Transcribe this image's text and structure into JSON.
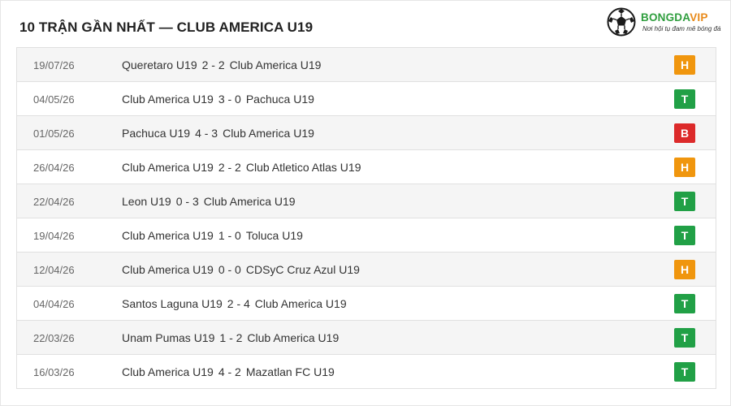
{
  "header": {
    "title": "10 TRẬN GẦN NHẤT — CLUB AMERICA U19"
  },
  "logo": {
    "brand_main": "BONGDA",
    "brand_accent": "VIP",
    "tagline": "Nơi hội tụ đam mê bóng đá",
    "icon": "soccer-ball-icon"
  },
  "colors": {
    "H": "#f0960e",
    "T": "#21a046",
    "B": "#dc2a2a"
  },
  "matches": [
    {
      "date": "19/07/26",
      "home": "Queretaro U19",
      "score": "2 - 2",
      "away": "Club America U19",
      "result": "H"
    },
    {
      "date": "04/05/26",
      "home": "Club America U19",
      "score": "3 - 0",
      "away": "Pachuca U19",
      "result": "T"
    },
    {
      "date": "01/05/26",
      "home": "Pachuca U19",
      "score": "4 - 3",
      "away": "Club America U19",
      "result": "B"
    },
    {
      "date": "26/04/26",
      "home": "Club America U19",
      "score": "2 - 2",
      "away": "Club Atletico Atlas U19",
      "result": "H"
    },
    {
      "date": "22/04/26",
      "home": "Leon U19",
      "score": "0 - 3",
      "away": "Club America U19",
      "result": "T"
    },
    {
      "date": "19/04/26",
      "home": "Club America U19",
      "score": "1 - 0",
      "away": "Toluca U19",
      "result": "T"
    },
    {
      "date": "12/04/26",
      "home": "Club America U19",
      "score": "0 - 0",
      "away": "CDSyC Cruz Azul U19",
      "result": "H"
    },
    {
      "date": "04/04/26",
      "home": "Santos Laguna U19",
      "score": "2 - 4",
      "away": "Club America U19",
      "result": "T"
    },
    {
      "date": "22/03/26",
      "home": "Unam Pumas U19",
      "score": "1 - 2",
      "away": "Club America U19",
      "result": "T"
    },
    {
      "date": "16/03/26",
      "home": "Club America U19",
      "score": "4 - 2",
      "away": "Mazatlan FC U19",
      "result": "T"
    }
  ]
}
